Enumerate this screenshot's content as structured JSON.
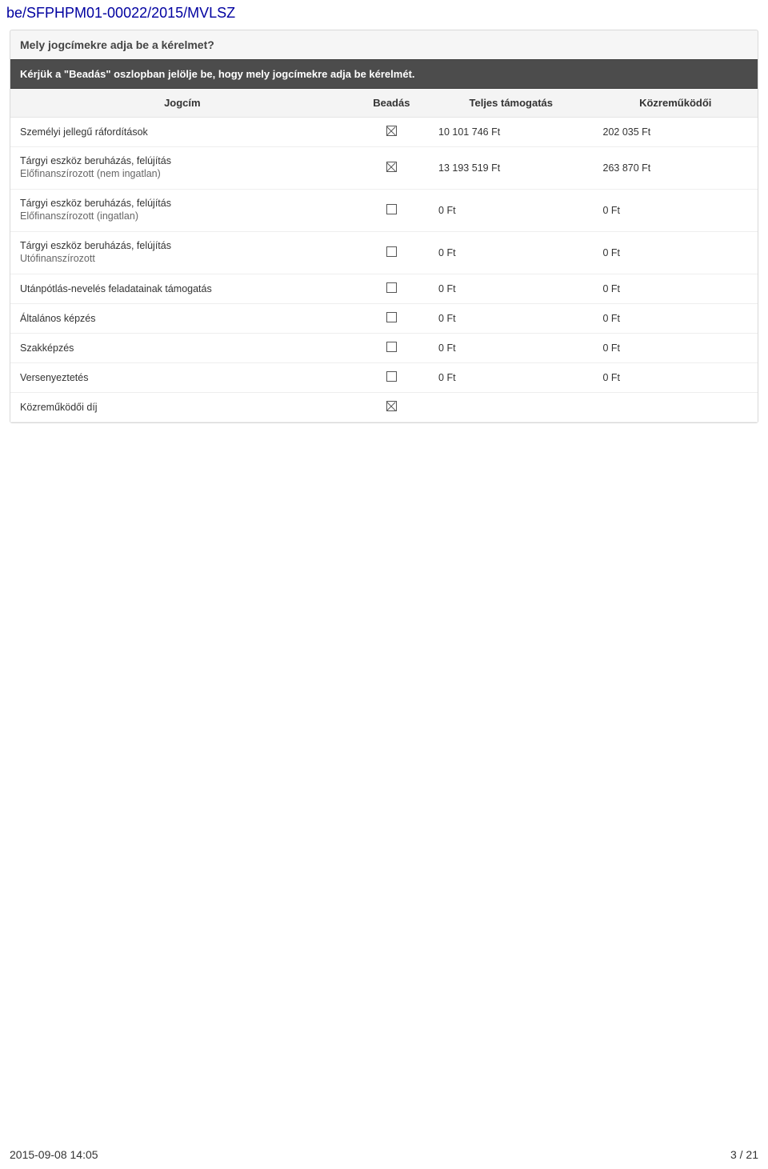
{
  "doc": {
    "id": "be/SFPHPM01-00022/2015/MVLSZ",
    "footer_timestamp": "2015-09-08 14:05",
    "footer_page": "3 / 21"
  },
  "panel": {
    "title": "Mely jogcímekre adja be a kérelmet?",
    "instruction": "Kérjük a \"Beadás\" oszlopban jelölje be, hogy mely jogcímekre adja be kérelmét."
  },
  "table": {
    "headers": {
      "title": "Jogcím",
      "check": "Beadás",
      "total": "Teljes támogatás",
      "contrib": "Közreműködői"
    },
    "rows": [
      {
        "title": "Személyi jellegű ráfordítások",
        "sub": "",
        "checked": true,
        "total": "10 101 746 Ft",
        "contrib": "202 035 Ft"
      },
      {
        "title": "Tárgyi eszköz beruházás, felújítás",
        "sub": "Előfinanszírozott (nem ingatlan)",
        "checked": true,
        "total": "13 193 519 Ft",
        "contrib": "263 870 Ft"
      },
      {
        "title": "Tárgyi eszköz beruházás, felújítás",
        "sub": "Előfinanszírozott (ingatlan)",
        "checked": false,
        "total": "0 Ft",
        "contrib": "0 Ft"
      },
      {
        "title": "Tárgyi eszköz beruházás, felújítás",
        "sub": "Utófinanszírozott",
        "checked": false,
        "total": "0 Ft",
        "contrib": "0 Ft"
      },
      {
        "title": "Utánpótlás-nevelés feladatainak támogatás",
        "sub": "",
        "checked": false,
        "total": "0 Ft",
        "contrib": "0 Ft"
      },
      {
        "title": "Általános képzés",
        "sub": "",
        "checked": false,
        "total": "0 Ft",
        "contrib": "0 Ft"
      },
      {
        "title": "Szakképzés",
        "sub": "",
        "checked": false,
        "total": "0 Ft",
        "contrib": "0 Ft"
      },
      {
        "title": "Versenyeztetés",
        "sub": "",
        "checked": false,
        "total": "0 Ft",
        "contrib": "0 Ft"
      },
      {
        "title": "Közreműködői díj",
        "sub": "",
        "checked": true,
        "total": "",
        "contrib": ""
      }
    ]
  }
}
